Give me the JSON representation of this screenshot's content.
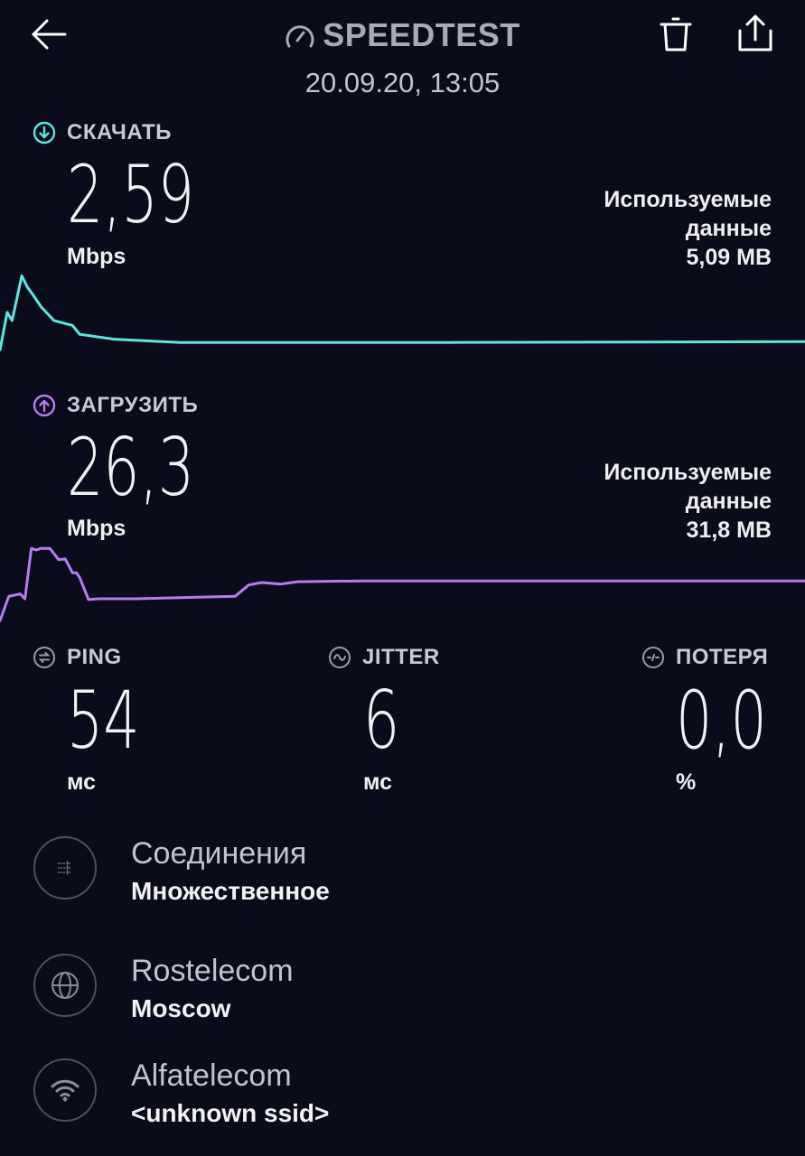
{
  "header": {
    "title": "SPEEDTEST",
    "date": "20.09.20, 13:05"
  },
  "download": {
    "label": "СКАЧАТЬ",
    "value": "2,59",
    "unit": "Mbps",
    "used_label_1": "Используемые",
    "used_label_2": "данные",
    "used_value": "5,09 MB",
    "color": "#5ee6df"
  },
  "upload": {
    "label": "ЗАГРУЗИТЬ",
    "value": "26,3",
    "unit": "Mbps",
    "used_label_1": "Используемые",
    "used_label_2": "данные",
    "used_value": "31,8 MB",
    "color": "#b77cf0"
  },
  "metrics": [
    {
      "label": "PING",
      "value": "54",
      "unit": "мс",
      "icon": "ping-icon"
    },
    {
      "label": "JITTER",
      "value": "6",
      "unit": "мс",
      "icon": "jitter-icon"
    },
    {
      "label": "ПОТЕРЯ",
      "value": "0,0",
      "unit": "%",
      "icon": "packet-loss-icon"
    }
  ],
  "details": [
    {
      "title": "Соединения",
      "subtitle": "Множественное",
      "icon": "connections-icon"
    },
    {
      "title": "Rostelecom",
      "subtitle": "Moscow",
      "icon": "globe-icon"
    },
    {
      "title": "Alfatelecom",
      "subtitle": "<unknown ssid>",
      "icon": "wifi-icon"
    }
  ],
  "chart_data": [
    {
      "type": "line",
      "series": [
        {
          "x": [
            0,
            0.9,
            1.5,
            2.7,
            3.4,
            4,
            5.1,
            6.7,
            9,
            9.9,
            14.2,
            22.4,
            56,
            100
          ],
          "y": [
            0.03,
            0.49,
            0.39,
            0.94,
            0.8,
            0.72,
            0.56,
            0.39,
            0.33,
            0.22,
            0.16,
            0.12,
            0.12,
            0.13
          ]
        }
      ],
      "color": "#5ee6df"
    },
    {
      "type": "line",
      "series": [
        {
          "x": [
            0,
            1.1,
            2.5,
            3.1,
            3.9,
            4.5,
            5.1,
            6.2,
            7.3,
            8.1,
            9,
            9.5,
            9.9,
            11,
            12.3,
            16.8,
            29.2,
            30.9,
            32.5,
            34.8,
            37,
            44.9,
            100
          ],
          "y": [
            0.03,
            0.33,
            0.36,
            0.3,
            0.92,
            0.9,
            0.92,
            0.92,
            0.78,
            0.79,
            0.62,
            0.62,
            0.56,
            0.29,
            0.3,
            0.3,
            0.33,
            0.47,
            0.5,
            0.48,
            0.51,
            0.52,
            0.52
          ]
        }
      ],
      "color": "#b77cf0"
    }
  ]
}
